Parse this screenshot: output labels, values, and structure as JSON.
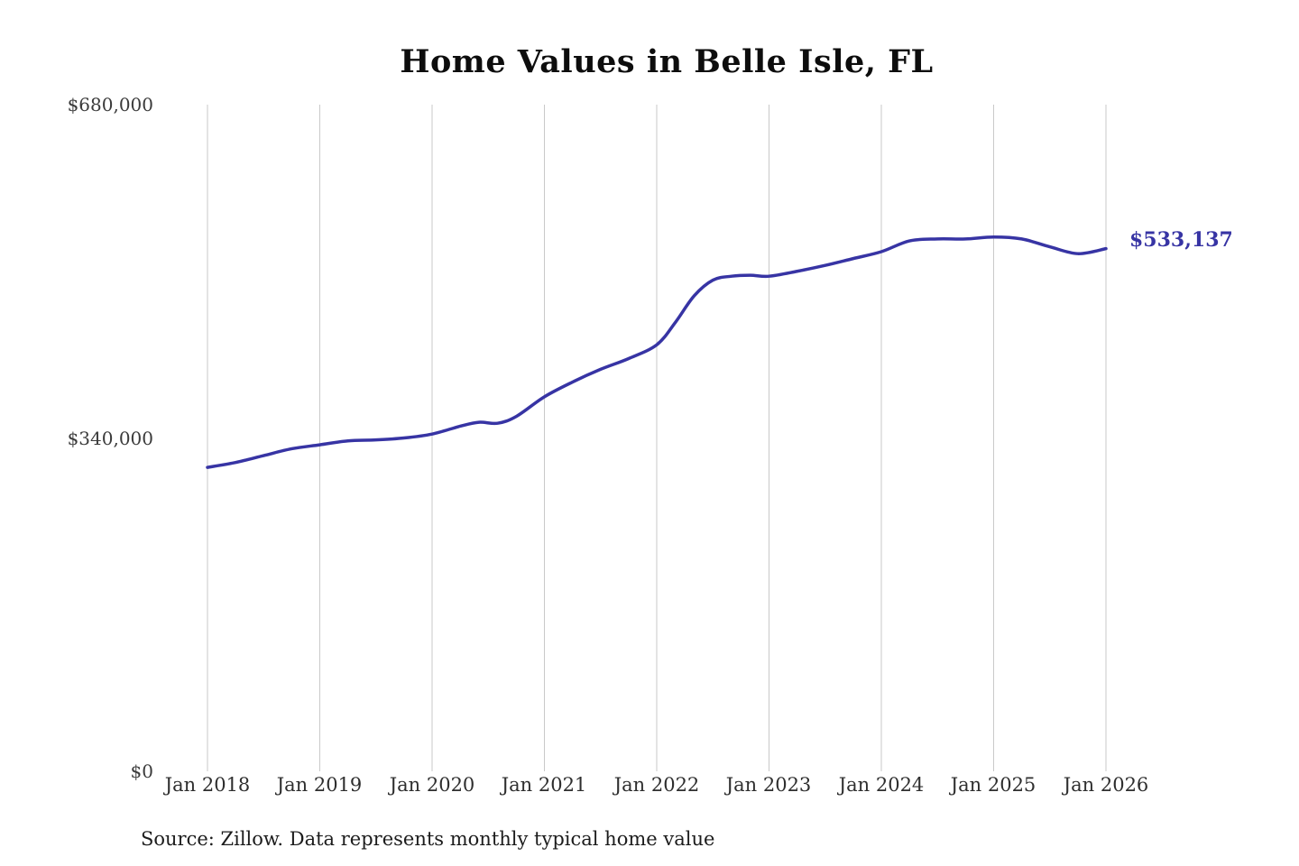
{
  "page": {
    "title": "Home Values in Belle Isle, FL",
    "source_note": "Source: Zillow. Data represents monthly typical home value"
  },
  "chart_data": {
    "type": "line",
    "title": "Home Values in Belle Isle, FL",
    "ylabel": "",
    "xlabel": "",
    "ylim": [
      0,
      680000
    ],
    "yticks": [
      0,
      340000,
      680000
    ],
    "ytick_labels": [
      "$0",
      "$340,000",
      "$680,000"
    ],
    "xtick_labels": [
      "Jan 2018",
      "Jan 2019",
      "Jan 2020",
      "Jan 2021",
      "Jan 2022",
      "Jan 2023",
      "Jan 2024",
      "Jan 2025",
      "Jan 2026"
    ],
    "grid": "vertical-only",
    "legend": "none",
    "line_color": "#3734a4",
    "gridline_color": "#c9c9c9",
    "end_label": "$533,137",
    "end_value": 533137,
    "series": [
      {
        "name": "Typical home value",
        "points": [
          [
            "2018-01",
            310000
          ],
          [
            "2018-04",
            315000
          ],
          [
            "2018-07",
            322000
          ],
          [
            "2018-10",
            329000
          ],
          [
            "2019-01",
            333000
          ],
          [
            "2019-04",
            337000
          ],
          [
            "2019-07",
            338000
          ],
          [
            "2019-10",
            340000
          ],
          [
            "2020-01",
            344000
          ],
          [
            "2020-04",
            352000
          ],
          [
            "2020-06",
            356000
          ],
          [
            "2020-08",
            355000
          ],
          [
            "2020-10",
            362000
          ],
          [
            "2021-01",
            382000
          ],
          [
            "2021-04",
            397000
          ],
          [
            "2021-07",
            410000
          ],
          [
            "2021-10",
            421000
          ],
          [
            "2022-01",
            435000
          ],
          [
            "2022-03",
            458000
          ],
          [
            "2022-05",
            485000
          ],
          [
            "2022-07",
            501000
          ],
          [
            "2022-09",
            505000
          ],
          [
            "2022-11",
            506000
          ],
          [
            "2023-01",
            505000
          ],
          [
            "2023-04",
            510000
          ],
          [
            "2023-07",
            516000
          ],
          [
            "2023-10",
            523000
          ],
          [
            "2024-01",
            530000
          ],
          [
            "2024-04",
            541000
          ],
          [
            "2024-07",
            543000
          ],
          [
            "2024-10",
            543000
          ],
          [
            "2025-01",
            545000
          ],
          [
            "2025-04",
            543000
          ],
          [
            "2025-07",
            535000
          ],
          [
            "2025-10",
            528000
          ],
          [
            "2026-01",
            533137
          ]
        ]
      }
    ]
  }
}
